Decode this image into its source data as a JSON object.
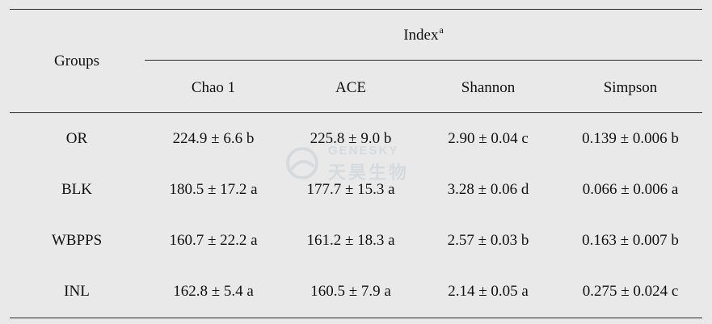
{
  "table": {
    "group_header": "Groups",
    "index_header": "Index",
    "index_superscript": "a",
    "columns": [
      "Chao 1",
      "ACE",
      "Shannon",
      "Simpson"
    ],
    "rows": [
      {
        "group": "OR",
        "chao1": "224.9 ± 6.6 b",
        "ace": "225.8 ± 9.0 b",
        "shannon": "2.90 ± 0.04 c",
        "simpson": "0.139 ± 0.006 b"
      },
      {
        "group": "BLK",
        "chao1": "180.5 ± 17.2 a",
        "ace": "177.7 ± 15.3 a",
        "shannon": "3.28 ± 0.06 d",
        "simpson": "0.066 ± 0.006 a"
      },
      {
        "group": "WBPPS",
        "chao1": "160.7 ± 22.2 a",
        "ace": "161.2 ± 18.3 a",
        "shannon": "2.57 ± 0.03 b",
        "simpson": "0.163 ± 0.007 b"
      },
      {
        "group": "INL",
        "chao1": "162.8 ± 5.4 a",
        "ace": "160.5 ± 7.9 a",
        "shannon": "2.14 ± 0.05 a",
        "simpson": "0.275 ± 0.024 c"
      }
    ]
  },
  "watermark": {
    "text_en": "GENESKY",
    "text_cn": "天昊生物"
  }
}
